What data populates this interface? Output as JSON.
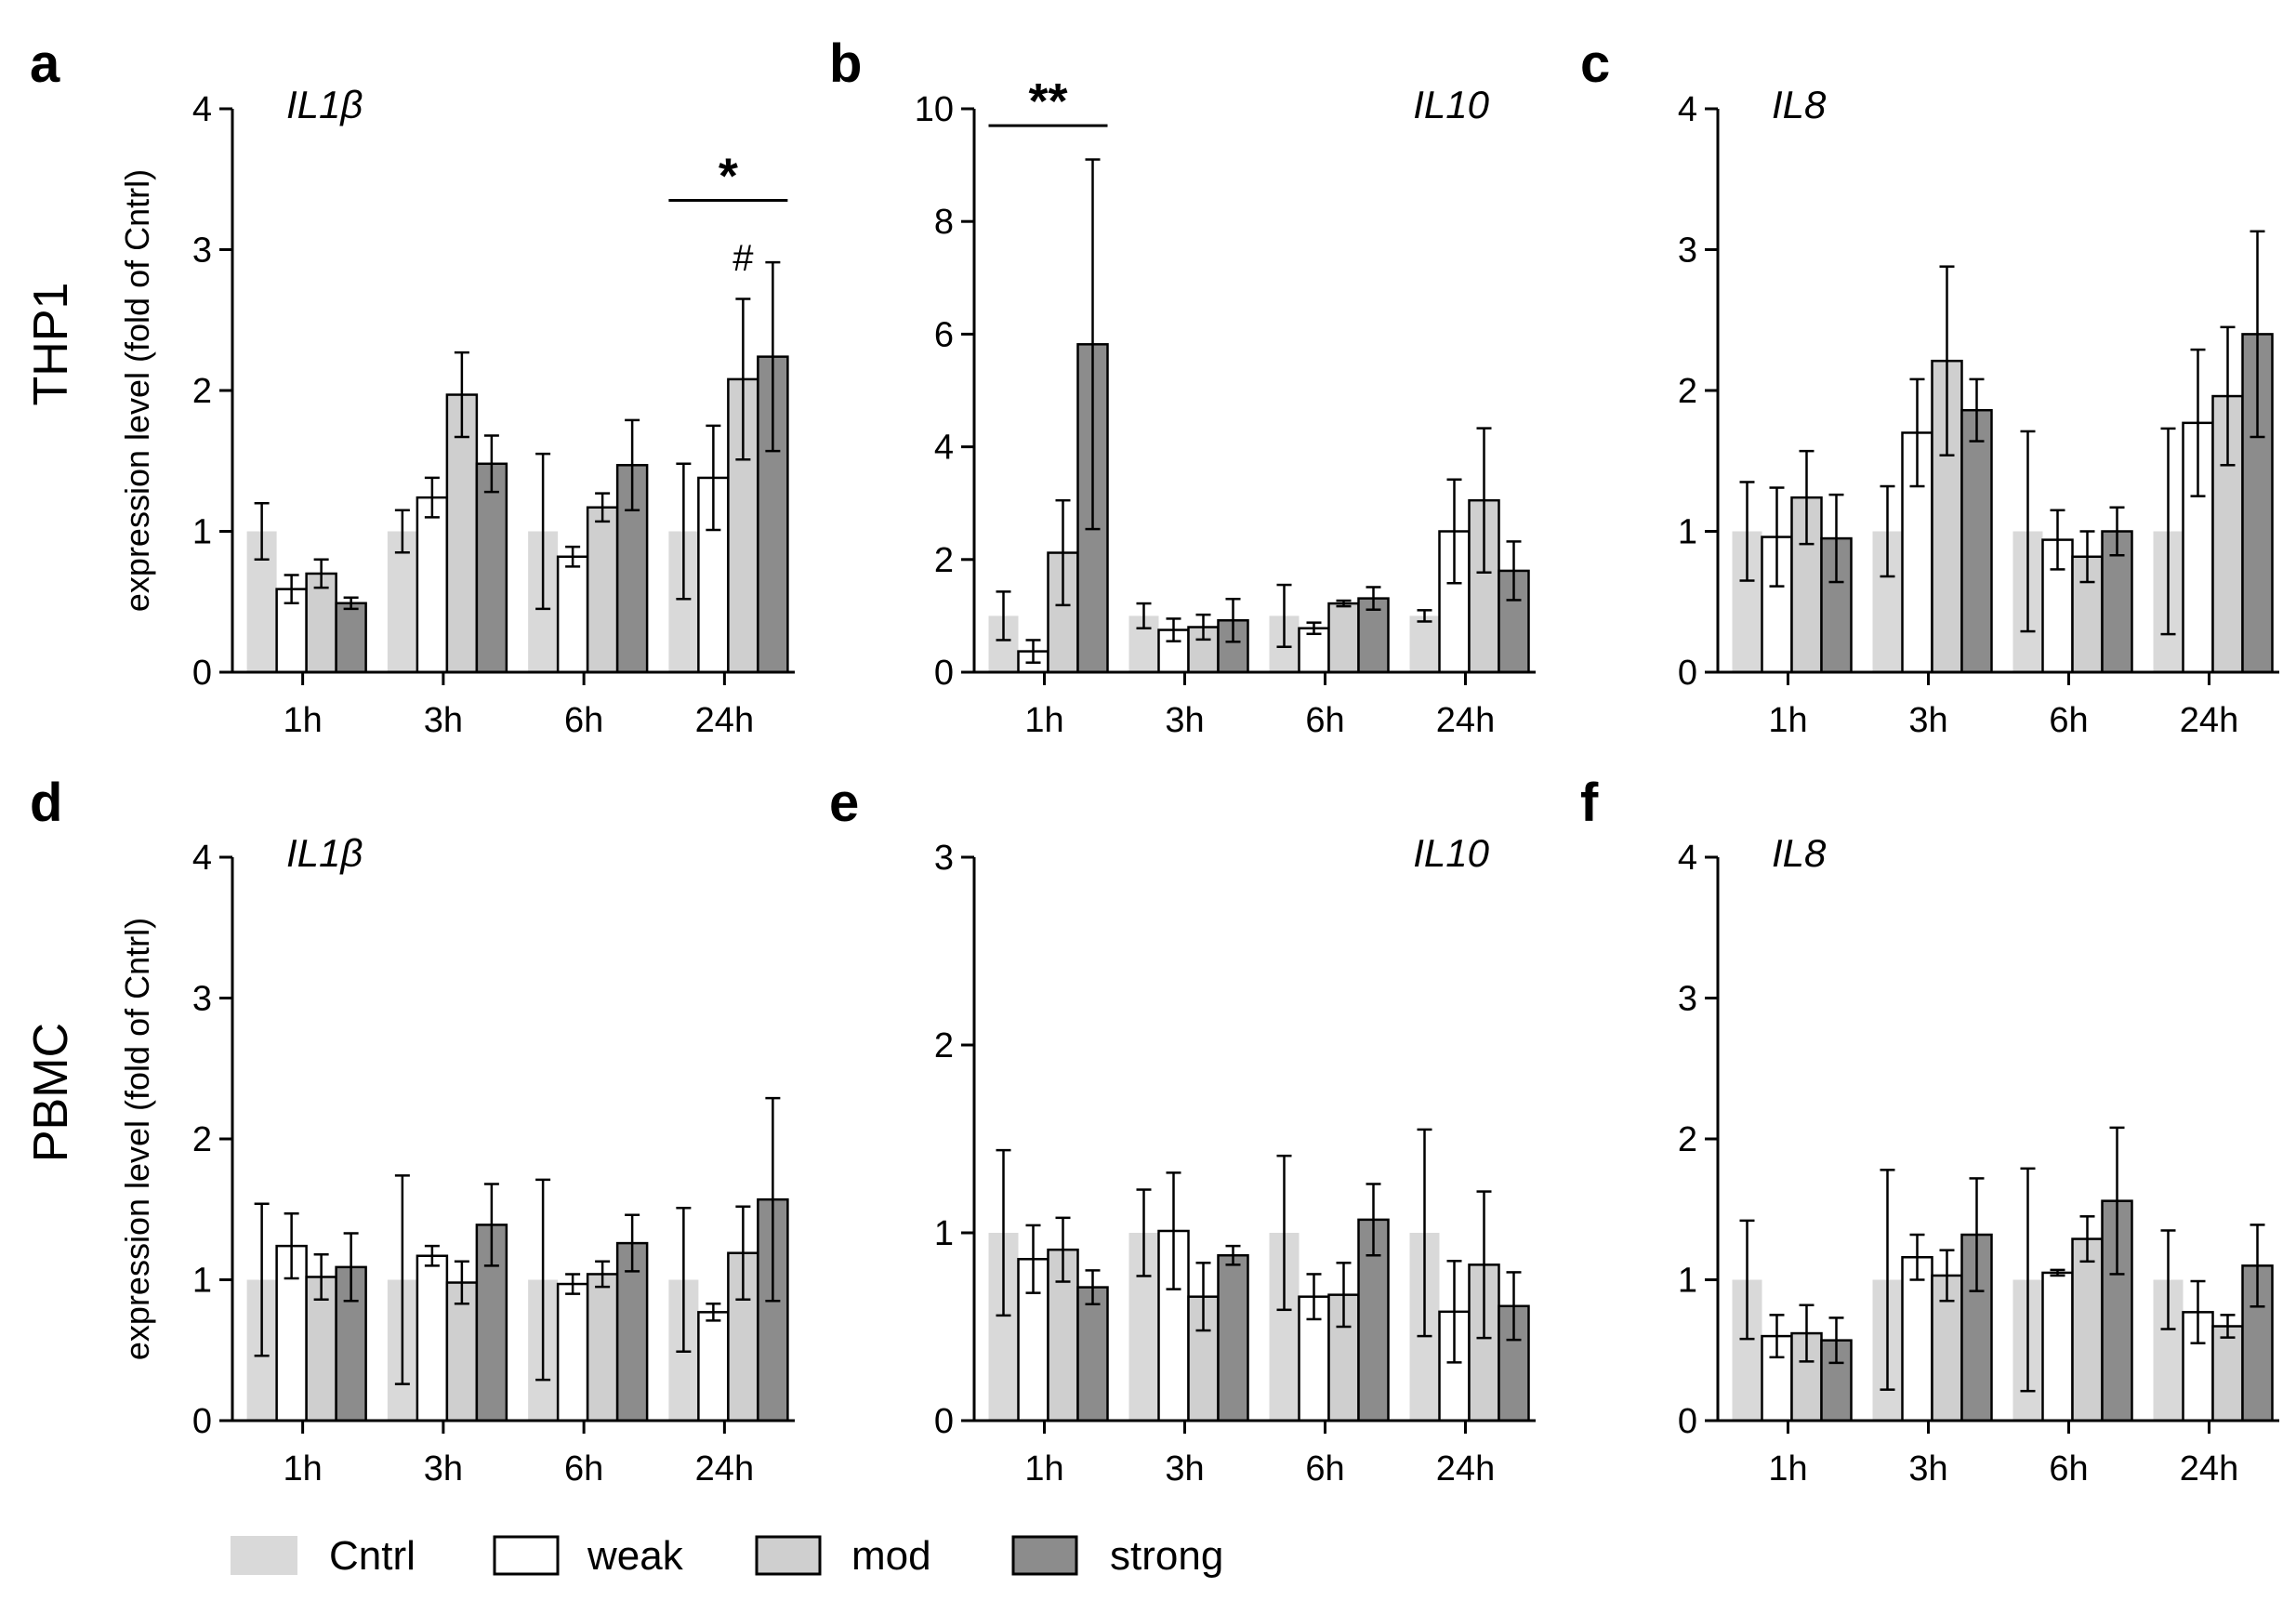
{
  "figure": {
    "row_labels": [
      "THP1",
      "PBMC"
    ],
    "ylabel": "expression level (fold of Cntrl)",
    "legend": [
      {
        "label": "Cntrl",
        "color": "#d9d9d9",
        "stroke": "none"
      },
      {
        "label": "weak",
        "color": "#ffffff",
        "stroke": "#000000"
      },
      {
        "label": "mod",
        "color": "#cfcfcf",
        "stroke": "#000000"
      },
      {
        "label": "strong",
        "color": "#8c8c8c",
        "stroke": "#000000"
      }
    ]
  },
  "chart_data": [
    {
      "type": "bar",
      "panel": "a",
      "row": "THP1",
      "gene": "IL1β",
      "categories": [
        "1h",
        "3h",
        "6h",
        "24h"
      ],
      "ylim": [
        0,
        4
      ],
      "yticks": [
        0,
        1,
        2,
        3,
        4
      ],
      "gene_pos": "left",
      "series": [
        {
          "name": "Cntrl",
          "values": [
            1.0,
            1.0,
            1.0,
            1.0
          ],
          "err": [
            0.2,
            0.15,
            0.55,
            0.48
          ]
        },
        {
          "name": "weak",
          "values": [
            0.59,
            1.24,
            0.82,
            1.38
          ],
          "err": [
            0.1,
            0.14,
            0.07,
            0.37
          ]
        },
        {
          "name": "mod",
          "values": [
            0.7,
            1.97,
            1.17,
            2.08
          ],
          "err": [
            0.1,
            0.3,
            0.1,
            0.57
          ]
        },
        {
          "name": "strong",
          "values": [
            0.49,
            1.48,
            1.47,
            2.24
          ],
          "err": [
            0.04,
            0.2,
            0.32,
            0.67
          ]
        }
      ],
      "annotations": [
        {
          "text": "*",
          "type": "bracket",
          "category": "24h",
          "from": "Cntrl",
          "to": "strong",
          "y": 3.35
        },
        {
          "text": "#",
          "type": "mark",
          "category": "24h",
          "series": "mod",
          "y": 2.85
        }
      ]
    },
    {
      "type": "bar",
      "panel": "b",
      "row": "THP1",
      "gene": "IL10",
      "categories": [
        "1h",
        "3h",
        "6h",
        "24h"
      ],
      "ylim": [
        0,
        10
      ],
      "yticks": [
        0,
        2,
        4,
        6,
        8,
        10
      ],
      "gene_pos": "right",
      "series": [
        {
          "name": "Cntrl",
          "values": [
            1.0,
            1.0,
            1.0,
            1.0
          ],
          "err": [
            0.43,
            0.22,
            0.55,
            0.1
          ]
        },
        {
          "name": "weak",
          "values": [
            0.37,
            0.75,
            0.78,
            2.5
          ],
          "err": [
            0.2,
            0.2,
            0.1,
            0.92
          ]
        },
        {
          "name": "mod",
          "values": [
            2.12,
            0.8,
            1.22,
            3.05
          ],
          "err": [
            0.93,
            0.22,
            0.05,
            1.28
          ]
        },
        {
          "name": "strong",
          "values": [
            5.82,
            0.92,
            1.31,
            1.8
          ],
          "err": [
            3.28,
            0.38,
            0.2,
            0.52
          ]
        }
      ],
      "annotations": [
        {
          "text": "**",
          "type": "bracket",
          "category": "1h",
          "from": "Cntrl",
          "to": "strong",
          "y": 9.7
        }
      ]
    },
    {
      "type": "bar",
      "panel": "c",
      "row": "THP1",
      "gene": "IL8",
      "categories": [
        "1h",
        "3h",
        "6h",
        "24h"
      ],
      "ylim": [
        0,
        4
      ],
      "yticks": [
        0,
        1,
        2,
        3,
        4
      ],
      "gene_pos": "left",
      "series": [
        {
          "name": "Cntrl",
          "values": [
            1.0,
            1.0,
            1.0,
            1.0
          ],
          "err": [
            0.35,
            0.32,
            0.71,
            0.73
          ]
        },
        {
          "name": "weak",
          "values": [
            0.96,
            1.7,
            0.94,
            1.77
          ],
          "err": [
            0.35,
            0.38,
            0.21,
            0.52
          ]
        },
        {
          "name": "mod",
          "values": [
            1.24,
            2.21,
            0.82,
            1.96
          ],
          "err": [
            0.33,
            0.67,
            0.18,
            0.49
          ]
        },
        {
          "name": "strong",
          "values": [
            0.95,
            1.86,
            1.0,
            2.4
          ],
          "err": [
            0.31,
            0.22,
            0.17,
            0.73
          ]
        }
      ],
      "annotations": []
    },
    {
      "type": "bar",
      "panel": "d",
      "row": "PBMC",
      "gene": "IL1β",
      "categories": [
        "1h",
        "3h",
        "6h",
        "24h"
      ],
      "ylim": [
        0,
        4
      ],
      "yticks": [
        0,
        1,
        2,
        3,
        4
      ],
      "gene_pos": "left",
      "series": [
        {
          "name": "Cntrl",
          "values": [
            1.0,
            1.0,
            1.0,
            1.0
          ],
          "err": [
            0.54,
            0.74,
            0.71,
            0.51
          ]
        },
        {
          "name": "weak",
          "values": [
            1.24,
            1.17,
            0.97,
            0.77
          ],
          "err": [
            0.23,
            0.07,
            0.07,
            0.06
          ]
        },
        {
          "name": "mod",
          "values": [
            1.02,
            0.98,
            1.04,
            1.19
          ],
          "err": [
            0.16,
            0.15,
            0.09,
            0.33
          ]
        },
        {
          "name": "strong",
          "values": [
            1.09,
            1.39,
            1.26,
            1.57
          ],
          "err": [
            0.24,
            0.29,
            0.2,
            0.72
          ]
        }
      ],
      "annotations": []
    },
    {
      "type": "bar",
      "panel": "e",
      "row": "PBMC",
      "gene": "IL10",
      "categories": [
        "1h",
        "3h",
        "6h",
        "24h"
      ],
      "ylim": [
        0,
        3
      ],
      "yticks": [
        0,
        1,
        2,
        3
      ],
      "gene_pos": "right",
      "series": [
        {
          "name": "Cntrl",
          "values": [
            1.0,
            1.0,
            1.0,
            1.0
          ],
          "err": [
            0.44,
            0.23,
            0.41,
            0.55
          ]
        },
        {
          "name": "weak",
          "values": [
            0.86,
            1.01,
            0.66,
            0.58
          ],
          "err": [
            0.18,
            0.31,
            0.12,
            0.27
          ]
        },
        {
          "name": "mod",
          "values": [
            0.91,
            0.66,
            0.67,
            0.83
          ],
          "err": [
            0.17,
            0.18,
            0.17,
            0.39
          ]
        },
        {
          "name": "strong",
          "values": [
            0.71,
            0.88,
            1.07,
            0.61
          ],
          "err": [
            0.09,
            0.05,
            0.19,
            0.18
          ]
        }
      ],
      "annotations": []
    },
    {
      "type": "bar",
      "panel": "f",
      "row": "PBMC",
      "gene": "IL8",
      "categories": [
        "1h",
        "3h",
        "6h",
        "24h"
      ],
      "ylim": [
        0,
        4
      ],
      "yticks": [
        0,
        1,
        2,
        3,
        4
      ],
      "gene_pos": "left",
      "series": [
        {
          "name": "Cntrl",
          "values": [
            1.0,
            1.0,
            1.0,
            1.0
          ],
          "err": [
            0.42,
            0.78,
            0.79,
            0.35
          ]
        },
        {
          "name": "weak",
          "values": [
            0.6,
            1.16,
            1.05,
            0.77
          ],
          "err": [
            0.15,
            0.16,
            0.02,
            0.22
          ]
        },
        {
          "name": "mod",
          "values": [
            0.62,
            1.03,
            1.29,
            0.67
          ],
          "err": [
            0.2,
            0.18,
            0.16,
            0.08
          ]
        },
        {
          "name": "strong",
          "values": [
            0.57,
            1.32,
            1.56,
            1.1
          ],
          "err": [
            0.16,
            0.4,
            0.52,
            0.29
          ]
        }
      ],
      "annotations": []
    }
  ]
}
